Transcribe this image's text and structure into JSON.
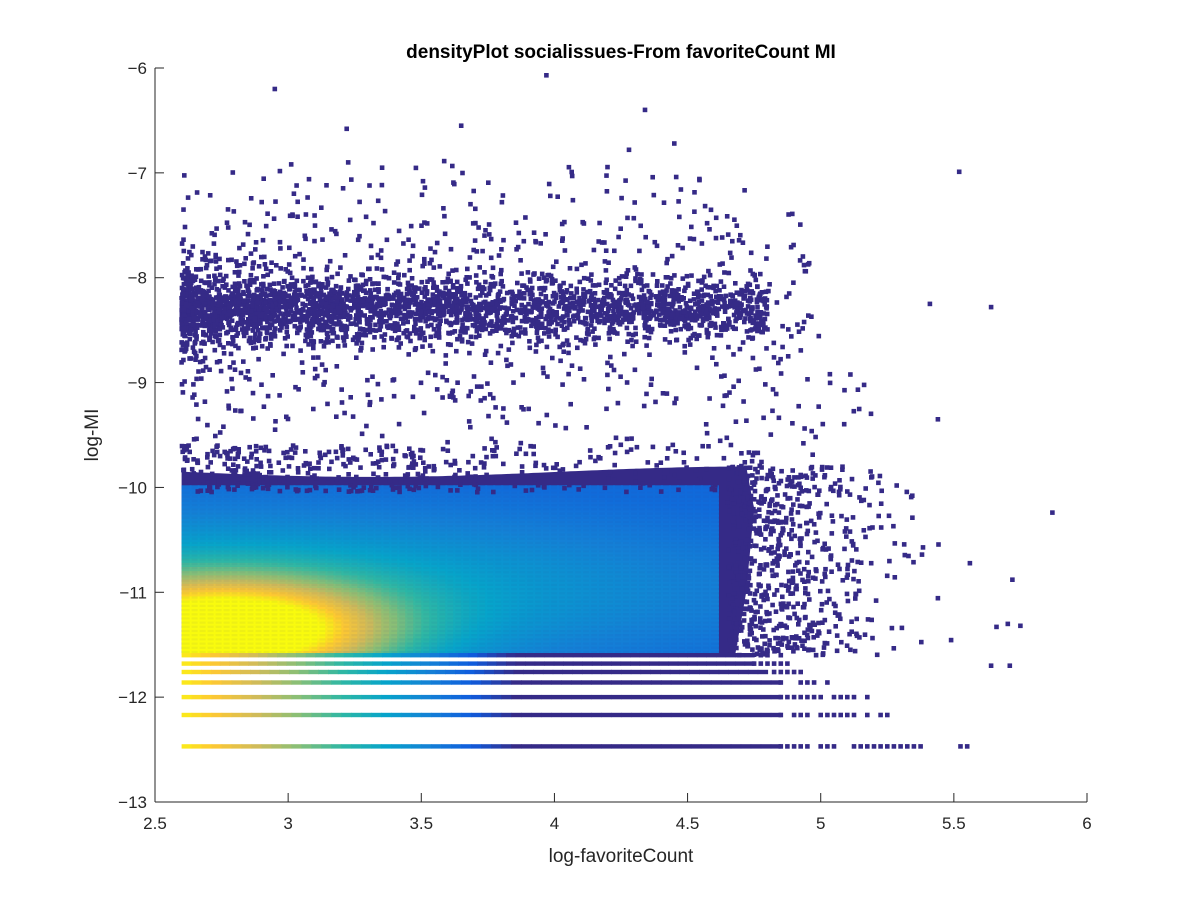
{
  "chart_data": {
    "type": "scatter",
    "subtype": "density scatter",
    "title": "densityPlot socialissues-From favoriteCount MI",
    "xlabel": "log-favoriteCount",
    "ylabel": "log-MI",
    "xlim": [
      2.5,
      6
    ],
    "ylim": [
      -13,
      -6
    ],
    "xticks": [
      2.5,
      3,
      3.5,
      4,
      4.5,
      5,
      5.5,
      6
    ],
    "yticks": [
      -6,
      -7,
      -8,
      -9,
      -10,
      -11,
      -12,
      -13
    ],
    "xtick_labels": [
      "2.5",
      "3",
      "3.5",
      "4",
      "4.5",
      "5",
      "5.5",
      "6"
    ],
    "ytick_labels": [
      "-6",
      "-7",
      "-8",
      "-9",
      "-10",
      "-11",
      "-12",
      "-13"
    ],
    "grid": false,
    "colormap": [
      "#352a87",
      "#0f5cdd",
      "#1481d6",
      "#06a4ca",
      "#2eb7a4",
      "#87bf77",
      "#d1bb59",
      "#fec832",
      "#f9fb0e"
    ],
    "clusters": [
      {
        "x_range": [
          2.6,
          5.0
        ],
        "y_center": -8.3,
        "y_spread": 0.25,
        "density": "low"
      },
      {
        "x_range": [
          2.6,
          4.8
        ],
        "y_range": [
          -11.6,
          -9.7
        ],
        "peak": [
          2.75,
          -11.4
        ],
        "density": "high"
      }
    ],
    "horizontal_bands": [
      {
        "y": -11.6,
        "x_max": 4.9
      },
      {
        "y": -11.68,
        "x_max": 4.9
      },
      {
        "y": -11.76,
        "x_max": 4.95
      },
      {
        "y": -11.86,
        "x_max": 5.05
      },
      {
        "y": -12.0,
        "x_max": 5.2
      },
      {
        "y": -12.17,
        "x_max": 5.28
      },
      {
        "y": -12.47,
        "x_max": 5.58
      }
    ],
    "outliers": [
      [
        2.95,
        -6.2
      ],
      [
        3.97,
        -6.07
      ],
      [
        4.34,
        -6.4
      ],
      [
        3.65,
        -6.55
      ],
      [
        3.22,
        -6.58
      ],
      [
        4.45,
        -6.72
      ],
      [
        4.28,
        -6.78
      ],
      [
        5.52,
        -6.99
      ],
      [
        5.87,
        -10.24
      ],
      [
        5.75,
        -11.32
      ],
      [
        5.66,
        -11.33
      ],
      [
        5.71,
        -11.7
      ],
      [
        5.64,
        -11.7
      ],
      [
        5.72,
        -10.88
      ],
      [
        5.44,
        -9.35
      ],
      [
        5.41,
        -8.25
      ],
      [
        5.64,
        -8.28
      ]
    ]
  }
}
